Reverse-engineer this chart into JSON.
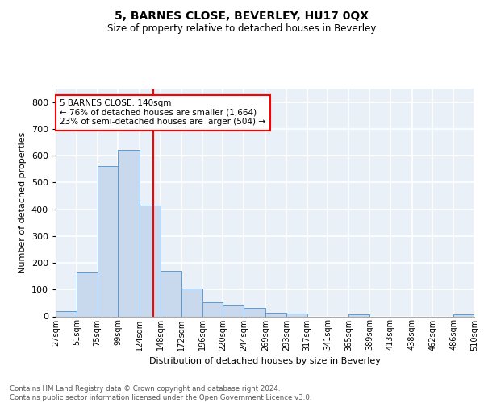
{
  "title": "5, BARNES CLOSE, BEVERLEY, HU17 0QX",
  "subtitle": "Size of property relative to detached houses in Beverley",
  "xlabel": "Distribution of detached houses by size in Beverley",
  "ylabel": "Number of detached properties",
  "bar_color": "#c8d9ed",
  "bar_edge_color": "#5b9bd5",
  "background_color": "#eaf0f8",
  "grid_color": "#ffffff",
  "vline_x": 140,
  "vline_color": "red",
  "annotation_text": "5 BARNES CLOSE: 140sqm\n← 76% of detached houses are smaller (1,664)\n23% of semi-detached houses are larger (504) →",
  "annotation_box_color": "white",
  "annotation_box_edge": "red",
  "footer": "Contains HM Land Registry data © Crown copyright and database right 2024.\nContains public sector information licensed under the Open Government Licence v3.0.",
  "bins": [
    27,
    51,
    75,
    99,
    124,
    148,
    172,
    196,
    220,
    244,
    269,
    293,
    317,
    341,
    365,
    389,
    413,
    438,
    462,
    486,
    510
  ],
  "counts": [
    20,
    165,
    560,
    620,
    415,
    170,
    103,
    52,
    40,
    32,
    15,
    12,
    0,
    0,
    8,
    0,
    0,
    0,
    0,
    8
  ],
  "ylim": [
    0,
    850
  ],
  "yticks": [
    0,
    100,
    200,
    300,
    400,
    500,
    600,
    700,
    800
  ]
}
